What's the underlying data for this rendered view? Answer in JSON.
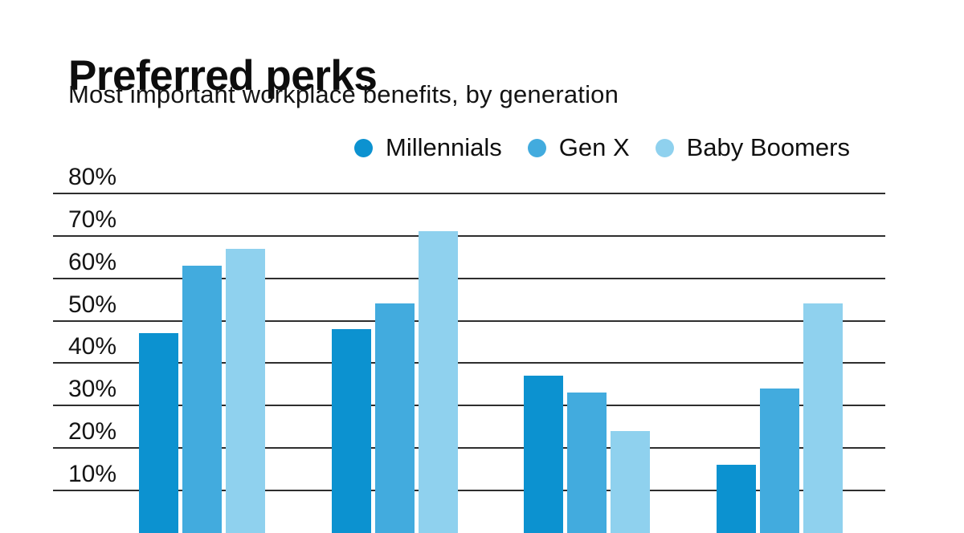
{
  "page": {
    "title": "Preferred perks",
    "subtitle": "Most important workplace benefits, by generation"
  },
  "colors": {
    "background": "#ffffff",
    "text": "#101010",
    "gridline": "#2e2e2e",
    "millennials": "#0c92d0",
    "gen_x": "#42abde",
    "baby_boomers": "#8fd1ee"
  },
  "legend": {
    "items": [
      {
        "label": "Millennials",
        "color": "#0c92d0"
      },
      {
        "label": "Gen X",
        "color": "#42abde"
      },
      {
        "label": "Baby Boomers",
        "color": "#8fd1ee"
      }
    ]
  },
  "chart_data": {
    "type": "bar",
    "title": "Preferred perks",
    "subtitle": "Most important workplace benefits, by generation",
    "unit": "%",
    "grid": "horizontal",
    "legend_position": "top",
    "ylim": [
      0,
      85
    ],
    "yticks": [
      {
        "value": 80,
        "label": "80%"
      },
      {
        "value": 70,
        "label": "70%"
      },
      {
        "value": 60,
        "label": "60%"
      },
      {
        "value": 50,
        "label": "50%"
      },
      {
        "value": 40,
        "label": "40%"
      },
      {
        "value": 30,
        "label": "30%"
      },
      {
        "value": 20,
        "label": "20%"
      },
      {
        "value": 10,
        "label": "10%"
      }
    ],
    "categories": [
      "",
      "",
      "",
      ""
    ],
    "series": [
      {
        "name": "Millennials",
        "color": "#0c92d0",
        "values": [
          47,
          48,
          37,
          16
        ]
      },
      {
        "name": "Gen X",
        "color": "#42abde",
        "values": [
          63,
          54,
          33,
          34
        ]
      },
      {
        "name": "Baby Boomers",
        "color": "#8fd1ee",
        "values": [
          67,
          71,
          24,
          54
        ]
      }
    ]
  }
}
